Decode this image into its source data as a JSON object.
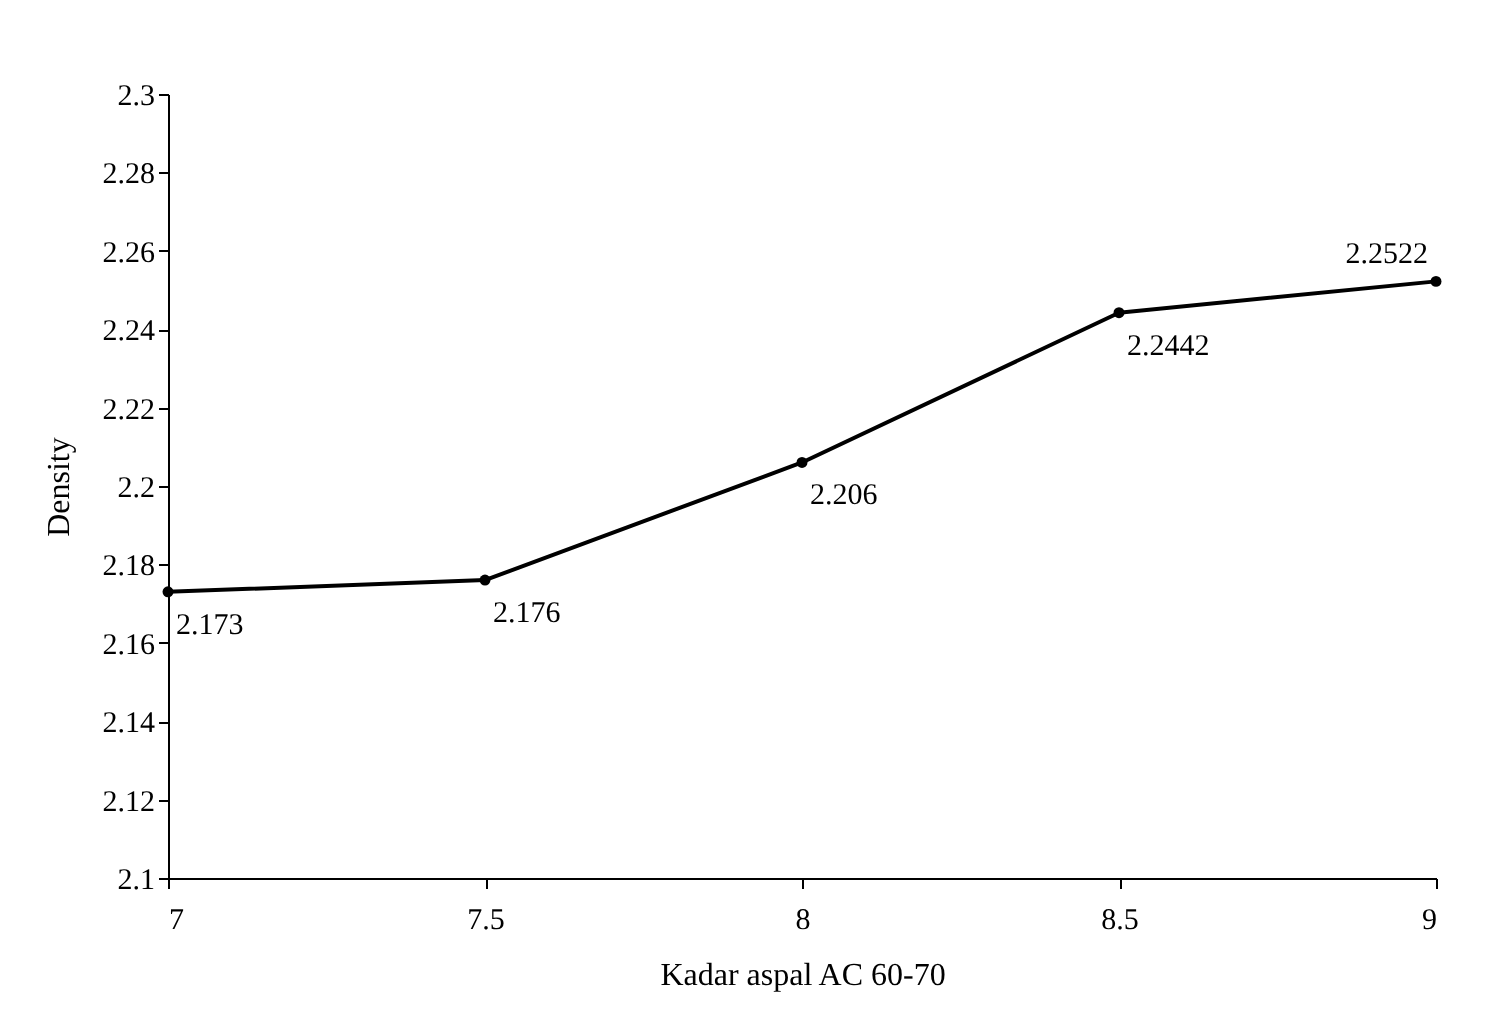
{
  "chart_data": {
    "type": "line",
    "xlabel": "Kadar aspal AC 60-70",
    "ylabel": "Density",
    "x": [
      7,
      7.5,
      8,
      8.5,
      9
    ],
    "series": [
      {
        "color": "#000000",
        "values": [
          2.173,
          2.176,
          2.206,
          2.2442,
          2.2522
        ]
      }
    ],
    "xlim": [
      7,
      9
    ],
    "xticks": [
      7,
      7.5,
      8,
      8.5,
      9
    ],
    "ylim": [
      2.1,
      2.3
    ],
    "yticks": [
      2.1,
      2.12,
      2.14,
      2.16,
      2.18,
      2.2,
      2.22,
      2.24,
      2.26,
      2.28,
      2.3
    ],
    "grid": false,
    "marker": "circle",
    "line_style": "solid",
    "data_labels": true
  }
}
